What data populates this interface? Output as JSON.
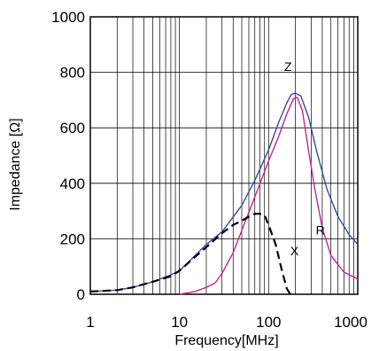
{
  "chart_data": {
    "type": "line",
    "title": "",
    "xlabel": "Frequency[MHz]",
    "ylabel": "Impedance [Ω]",
    "x_scale": "log",
    "xlim": [
      1,
      1000
    ],
    "ylim": [
      0,
      1000
    ],
    "grid": true,
    "x_tick_labels": [
      "1",
      "10",
      "100",
      "1000"
    ],
    "y_tick_labels": [
      "0",
      "200",
      "400",
      "600",
      "800",
      "1000"
    ],
    "series": [
      {
        "name": "Z",
        "color": "#3a4a9a",
        "dash": "solid",
        "points": [
          [
            1,
            10
          ],
          [
            2,
            15
          ],
          [
            3,
            25
          ],
          [
            5,
            45
          ],
          [
            8,
            70
          ],
          [
            10,
            85
          ],
          [
            15,
            140
          ],
          [
            20,
            180
          ],
          [
            30,
            225
          ],
          [
            50,
            320
          ],
          [
            70,
            410
          ],
          [
            100,
            520
          ],
          [
            130,
            620
          ],
          [
            160,
            690
          ],
          [
            180,
            720
          ],
          [
            200,
            725
          ],
          [
            230,
            715
          ],
          [
            280,
            640
          ],
          [
            350,
            510
          ],
          [
            450,
            380
          ],
          [
            600,
            280
          ],
          [
            800,
            215
          ],
          [
            1000,
            180
          ]
        ]
      },
      {
        "name": "R",
        "color": "#c0288a",
        "dash": "solid",
        "points": [
          [
            10,
            0
          ],
          [
            15,
            10
          ],
          [
            20,
            25
          ],
          [
            25,
            40
          ],
          [
            30,
            75
          ],
          [
            40,
            150
          ],
          [
            50,
            230
          ],
          [
            70,
            350
          ],
          [
            100,
            480
          ],
          [
            130,
            570
          ],
          [
            160,
            650
          ],
          [
            190,
            705
          ],
          [
            210,
            710
          ],
          [
            240,
            660
          ],
          [
            280,
            520
          ],
          [
            330,
            380
          ],
          [
            400,
            240
          ],
          [
            500,
            140
          ],
          [
            700,
            80
          ],
          [
            1000,
            55
          ]
        ]
      },
      {
        "name": "X",
        "color": "#000000",
        "dash": "dashed",
        "points": [
          [
            1,
            10
          ],
          [
            2,
            15
          ],
          [
            3,
            25
          ],
          [
            5,
            45
          ],
          [
            8,
            65
          ],
          [
            10,
            85
          ],
          [
            15,
            135
          ],
          [
            20,
            170
          ],
          [
            30,
            220
          ],
          [
            40,
            250
          ],
          [
            50,
            265
          ],
          [
            60,
            280
          ],
          [
            70,
            290
          ],
          [
            80,
            290
          ],
          [
            90,
            285
          ],
          [
            100,
            250
          ],
          [
            120,
            180
          ],
          [
            140,
            90
          ],
          [
            160,
            20
          ],
          [
            175,
            0
          ]
        ]
      }
    ],
    "annotations": [
      {
        "text": "Z",
        "x": 165,
        "y": 805
      },
      {
        "text": "R",
        "x": 380,
        "y": 215
      },
      {
        "text": "X",
        "x": 195,
        "y": 140
      }
    ]
  }
}
